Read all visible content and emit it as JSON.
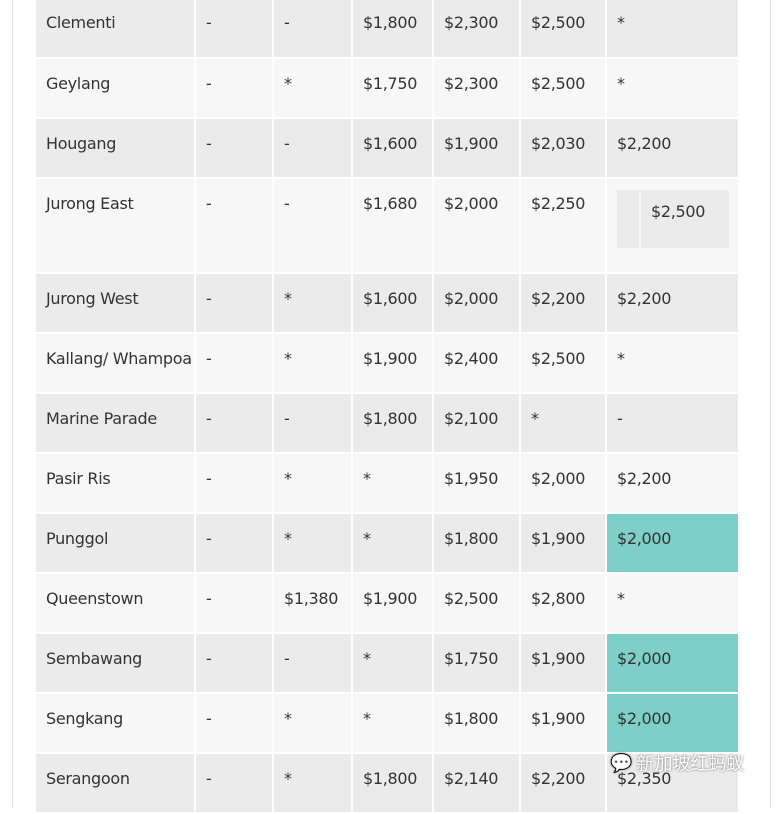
{
  "rows": [
    {
      "name": "Clementi",
      "c": [
        "-",
        "-",
        "$1,800",
        "$2,300",
        "$2,500",
        "*"
      ]
    },
    {
      "name": "Geylang",
      "c": [
        "-",
        "*",
        "$1,750",
        "$2,300",
        "$2,500",
        "*"
      ]
    },
    {
      "name": "Hougang",
      "c": [
        "-",
        "-",
        "$1,600",
        "$1,900",
        "$2,030",
        "$2,200"
      ]
    },
    {
      "name": "Jurong East",
      "c": [
        "-",
        "-",
        "$1,680",
        "$2,000",
        "$2,250",
        "$2,500"
      ]
    },
    {
      "name": "Jurong West",
      "c": [
        "-",
        "*",
        "$1,600",
        "$2,000",
        "$2,200",
        "$2,200"
      ]
    },
    {
      "name": "Kallang/ Whampoa",
      "c": [
        "-",
        "*",
        "$1,900",
        "$2,400",
        "$2,500",
        "*"
      ]
    },
    {
      "name": "Marine Parade",
      "c": [
        "-",
        "-",
        "$1,800",
        "$2,100",
        "*",
        "-"
      ]
    },
    {
      "name": "Pasir Ris",
      "c": [
        "-",
        "*",
        "*",
        "$1,950",
        "$2,000",
        "$2,200"
      ]
    },
    {
      "name": "Punggol",
      "c": [
        "-",
        "*",
        "*",
        "$1,800",
        "$1,900",
        "$2,000"
      ]
    },
    {
      "name": "Queenstown",
      "c": [
        "-",
        "$1,380",
        "$1,900",
        "$2,500",
        "$2,800",
        "*"
      ]
    },
    {
      "name": "Sembawang",
      "c": [
        "-",
        "-",
        "*",
        "$1,750",
        "$1,900",
        "$2,000"
      ]
    },
    {
      "name": "Sengkang",
      "c": [
        "-",
        "*",
        "*",
        "$1,800",
        "$1,900",
        "$2,000"
      ]
    },
    {
      "name": "Serangoon",
      "c": [
        "-",
        "*",
        "$1,800",
        "$2,140",
        "$2,200",
        "$2,350"
      ]
    }
  ],
  "highlight_color": "#7ecfc8",
  "watermark": "新加坡红蚂蚁",
  "watermark_icon": "wechat-icon"
}
